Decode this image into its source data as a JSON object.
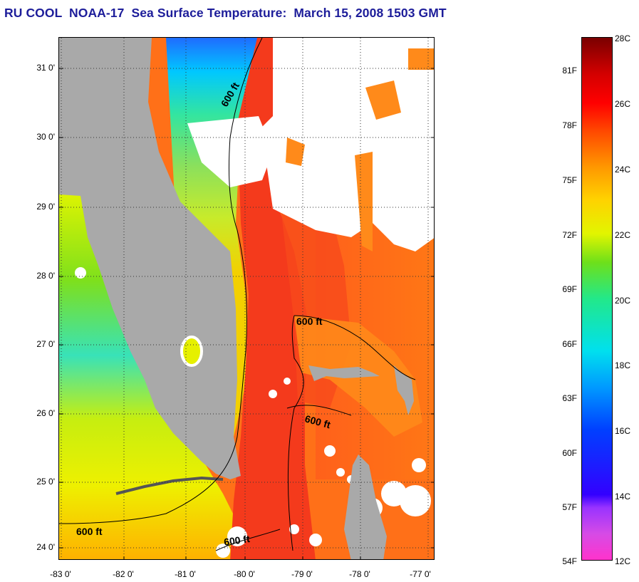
{
  "title": "RU COOL  NOAA-17  Sea Surface Temperature:  March 15, 2008 1503 GMT",
  "map": {
    "lat_ticks": [
      "31 0'",
      "30 0'",
      "29 0'",
      "28 0'",
      "27 0'",
      "26 0'",
      "25 0'",
      "24 0'"
    ],
    "lon_ticks": [
      "-83 0'",
      "-82 0'",
      "-81 0'",
      "-80 0'",
      "-79 0'",
      "-78 0'",
      "-77 0'"
    ],
    "contour_labels": [
      "600 ft",
      "600 ft",
      "600 ft",
      "600 ft",
      "600 ft"
    ],
    "colors": {
      "land": "#a9a9a9",
      "cloud": "#ffffff",
      "gulf_stream": "#f43a1c",
      "contour": "#000000"
    }
  },
  "colorbar": {
    "f_labels": [
      "81F",
      "78F",
      "75F",
      "72F",
      "69F",
      "66F",
      "63F",
      "60F",
      "57F",
      "54F"
    ],
    "c_labels": [
      "28C",
      "26C",
      "24C",
      "22C",
      "20C",
      "18C",
      "16C",
      "14C",
      "12C"
    ],
    "range_c": [
      12,
      28
    ],
    "range_f": [
      54,
      82
    ]
  }
}
